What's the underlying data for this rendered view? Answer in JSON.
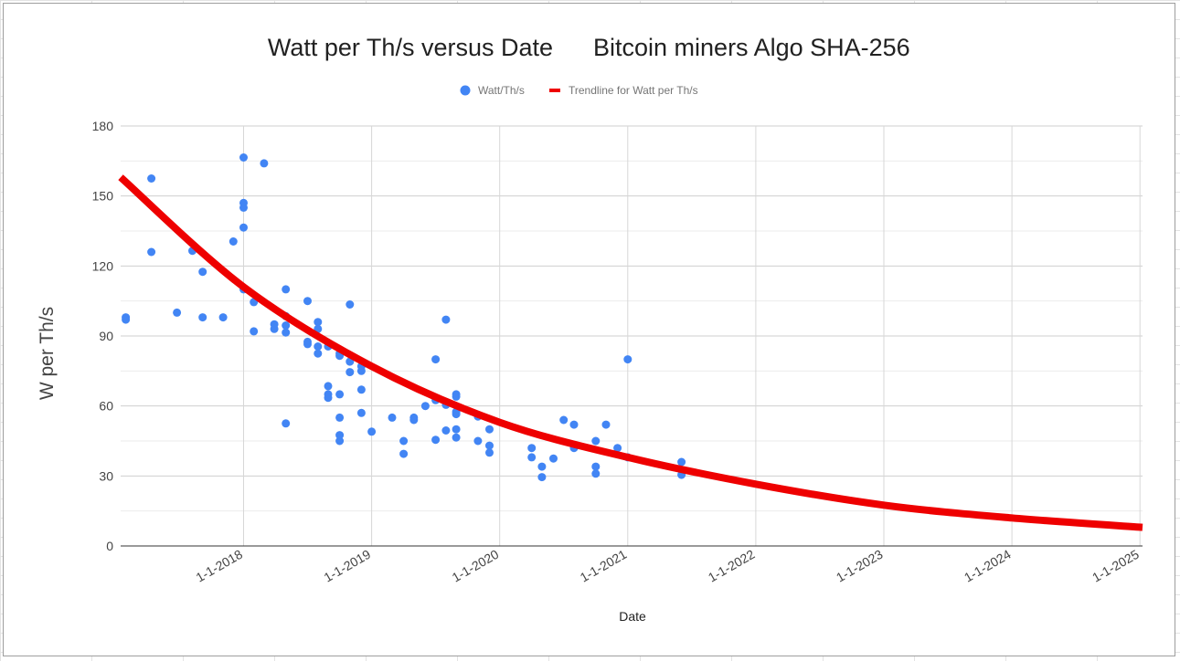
{
  "chart_data": {
    "type": "scatter",
    "title_left": "Watt per Th/s versus Date",
    "title_right": "Bitcoin miners Algo SHA-256",
    "xlabel": "Date",
    "ylabel": "W per Th/s",
    "legend": [
      {
        "name": "Watt/Th/s",
        "kind": "point",
        "color": "#4285f4"
      },
      {
        "name": "Trendline for Watt per Th/s",
        "kind": "line",
        "color": "#ee0000"
      }
    ],
    "legend_position": "top",
    "ylim": [
      0,
      180
    ],
    "yticks": [
      0,
      30,
      60,
      90,
      120,
      150,
      180
    ],
    "xlim": [
      2017.04,
      2025.02
    ],
    "xticks": [
      {
        "value": 2018,
        "label": "1-1-2018"
      },
      {
        "value": 2019,
        "label": "1-1-2019"
      },
      {
        "value": 2020,
        "label": "1-1-2020"
      },
      {
        "value": 2021,
        "label": "1-1-2021"
      },
      {
        "value": 2022,
        "label": "1-1-2022"
      },
      {
        "value": 2023,
        "label": "1-1-2023"
      },
      {
        "value": 2024,
        "label": "1-1-2024"
      },
      {
        "value": 2025,
        "label": "1-1-2025"
      }
    ],
    "grid": true,
    "trendline": {
      "type": "exponential",
      "points": [
        [
          2017.04,
          158
        ],
        [
          2018,
          111
        ],
        [
          2019,
          77
        ],
        [
          2020,
          53
        ],
        [
          2021,
          38
        ],
        [
          2022,
          26.5
        ],
        [
          2023,
          17.5
        ],
        [
          2024,
          12
        ],
        [
          2025.02,
          8
        ]
      ]
    },
    "points": [
      [
        2017.08,
        98
      ],
      [
        2017.08,
        97
      ],
      [
        2017.28,
        157.5
      ],
      [
        2017.28,
        126
      ],
      [
        2017.48,
        100
      ],
      [
        2017.6,
        126.5
      ],
      [
        2017.68,
        117.5
      ],
      [
        2017.68,
        98
      ],
      [
        2017.84,
        98
      ],
      [
        2017.92,
        130.5
      ],
      [
        2018.0,
        166.5
      ],
      [
        2018.0,
        147
      ],
      [
        2018.0,
        145
      ],
      [
        2018.0,
        136.5
      ],
      [
        2018.0,
        110
      ],
      [
        2018.08,
        104.5
      ],
      [
        2018.08,
        92
      ],
      [
        2018.16,
        164
      ],
      [
        2018.24,
        95
      ],
      [
        2018.24,
        93
      ],
      [
        2018.33,
        110
      ],
      [
        2018.33,
        98.5
      ],
      [
        2018.33,
        94.5
      ],
      [
        2018.33,
        91.5
      ],
      [
        2018.33,
        52.5
      ],
      [
        2018.5,
        105
      ],
      [
        2018.5,
        87.5
      ],
      [
        2018.5,
        86.5
      ],
      [
        2018.58,
        96
      ],
      [
        2018.58,
        93
      ],
      [
        2018.58,
        85.5
      ],
      [
        2018.58,
        82.5
      ],
      [
        2018.66,
        85.5
      ],
      [
        2018.66,
        68.5
      ],
      [
        2018.66,
        65
      ],
      [
        2018.66,
        63.5
      ],
      [
        2018.75,
        82.5
      ],
      [
        2018.75,
        81.5
      ],
      [
        2018.75,
        65
      ],
      [
        2018.75,
        55
      ],
      [
        2018.75,
        47.5
      ],
      [
        2018.75,
        45
      ],
      [
        2018.83,
        103.5
      ],
      [
        2018.83,
        79
      ],
      [
        2018.83,
        74.5
      ],
      [
        2018.92,
        77
      ],
      [
        2018.92,
        75
      ],
      [
        2018.92,
        67
      ],
      [
        2018.92,
        57
      ],
      [
        2019.0,
        49
      ],
      [
        2019.16,
        55
      ],
      [
        2019.25,
        45
      ],
      [
        2019.25,
        39.5
      ],
      [
        2019.33,
        55
      ],
      [
        2019.33,
        54
      ],
      [
        2019.42,
        60
      ],
      [
        2019.5,
        80
      ],
      [
        2019.5,
        62.5
      ],
      [
        2019.5,
        45.5
      ],
      [
        2019.58,
        97
      ],
      [
        2019.58,
        60.5
      ],
      [
        2019.58,
        49.5
      ],
      [
        2019.66,
        65
      ],
      [
        2019.66,
        64
      ],
      [
        2019.66,
        57.5
      ],
      [
        2019.66,
        56.5
      ],
      [
        2019.66,
        50
      ],
      [
        2019.66,
        46.5
      ],
      [
        2019.83,
        55.5
      ],
      [
        2019.83,
        45
      ],
      [
        2019.92,
        50
      ],
      [
        2019.92,
        43
      ],
      [
        2019.92,
        40
      ],
      [
        2020.25,
        42
      ],
      [
        2020.25,
        38
      ],
      [
        2020.33,
        34
      ],
      [
        2020.33,
        29.5
      ],
      [
        2020.42,
        37.5
      ],
      [
        2020.5,
        54
      ],
      [
        2020.58,
        52
      ],
      [
        2020.58,
        42
      ],
      [
        2020.75,
        45
      ],
      [
        2020.75,
        34
      ],
      [
        2020.75,
        31
      ],
      [
        2020.83,
        52
      ],
      [
        2020.92,
        42
      ],
      [
        2021.0,
        80
      ],
      [
        2021.0,
        38
      ],
      [
        2021.42,
        36
      ],
      [
        2021.42,
        30.5
      ]
    ]
  }
}
